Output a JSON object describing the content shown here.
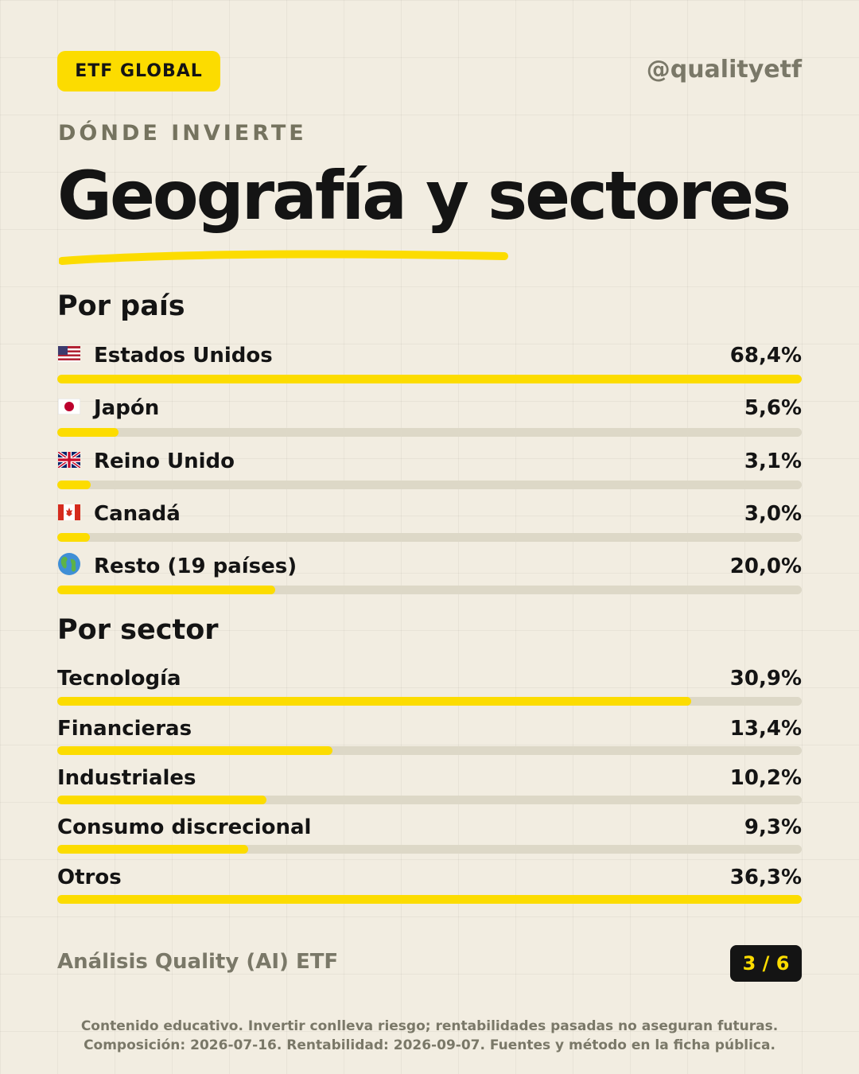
{
  "badge": "ETF GLOBAL",
  "handle": "@qualityetf",
  "kicker": "DÓNDE INVIERTE",
  "title": "Geografía y sectores",
  "colors": {
    "accent": "#fcdc00",
    "track": "#ddd8c7",
    "text": "#141414",
    "muted": "#7a7868",
    "background": "#f2ede1"
  },
  "chart_data": [
    {
      "type": "bar",
      "title": "Por país",
      "categories": [
        "Estados Unidos",
        "Japón",
        "Reino Unido",
        "Canadá",
        "Resto (19 países)"
      ],
      "icons": [
        "us-flag-icon",
        "japan-flag-icon",
        "uk-flag-icon",
        "canada-flag-icon",
        "globe-icon"
      ],
      "values": [
        68.4,
        5.6,
        3.1,
        3.0,
        20.0
      ],
      "value_labels": [
        "68,4%",
        "5,6%",
        "3,1%",
        "3,0%",
        "20,0%"
      ]
    },
    {
      "type": "bar",
      "title": "Por sector",
      "categories": [
        "Tecnología",
        "Financieras",
        "Industriales",
        "Consumo discrecional",
        "Otros"
      ],
      "values": [
        30.9,
        13.4,
        10.2,
        9.3,
        36.3
      ],
      "value_labels": [
        "30,9%",
        "13,4%",
        "10,2%",
        "9,3%",
        "36,3%"
      ]
    }
  ],
  "footer": {
    "label": "Análisis Quality (AI) ETF",
    "page": "3 / 6"
  },
  "disclaimer": {
    "line1": "Contenido educativo. Invertir conlleva riesgo; rentabilidades pasadas no aseguran futuras.",
    "line2": "Composición: 2026-07-16. Rentabilidad: 2026-09-07. Fuentes y método en la ficha pública."
  }
}
